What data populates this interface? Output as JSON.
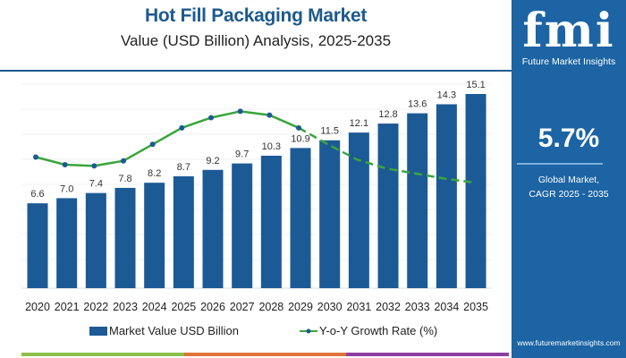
{
  "chart_data": {
    "type": "bar",
    "title": "Hot Fill Packaging Market",
    "subtitle": "Value (USD Billion) Analysis, 2025-2035",
    "categories": [
      "2020",
      "2021",
      "2022",
      "2023",
      "2024",
      "2025",
      "2026",
      "2027",
      "2028",
      "2029",
      "2030",
      "2031",
      "2032",
      "2033",
      "2034",
      "2035"
    ],
    "series": [
      {
        "name": "Market Value USD Billion",
        "type": "bar",
        "color": "#1c5a96",
        "values": [
          6.6,
          7.0,
          7.4,
          7.8,
          8.2,
          8.7,
          9.2,
          9.7,
          10.3,
          10.9,
          11.5,
          12.1,
          12.8,
          13.6,
          14.3,
          15.1
        ]
      },
      {
        "name": "Y-o-Y Growth Rate (%)",
        "type": "line",
        "color": "#3aa53a",
        "values": [
          5.6,
          5.0,
          4.9,
          5.3,
          6.6,
          7.9,
          8.7,
          9.2,
          8.9,
          7.9,
          6.6,
          5.4,
          4.7,
          4.3,
          3.9,
          3.6
        ],
        "dashed_from": "2030"
      }
    ],
    "ylim": [
      0,
      16
    ],
    "grid": true,
    "legend": "bottom"
  },
  "legend": {
    "bar_label": "Market Value USD Billion",
    "line_label": "Y-o-Y Growth Rate (%)"
  },
  "panel": {
    "logo": "fmi",
    "logo_sub": "Future Market Insights",
    "cagr": "5.7%",
    "cagr_label_1": "Global Market,",
    "cagr_label_2": "CAGR 2025 - 2035",
    "url": "www.futuremarketinsights.com",
    "color": "#1c64a4"
  },
  "bottom_bar_colors": [
    "#8cc04b",
    "#e0743a",
    "#8e3fa0"
  ]
}
